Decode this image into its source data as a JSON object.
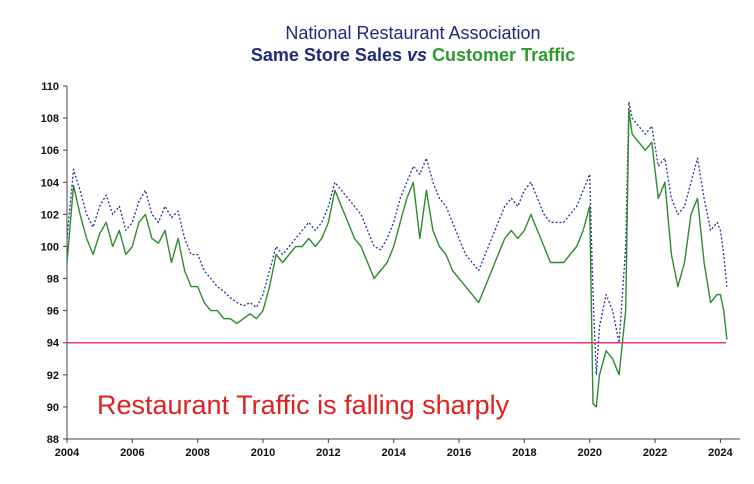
{
  "chart_data": {
    "type": "line",
    "title": "National Restaurant Association",
    "subtitle": {
      "part1": "Same Store Sales",
      "part2": "vs",
      "part3": "Customer Traffic"
    },
    "xlabel": "",
    "ylabel": "",
    "xlim": [
      2004,
      2024.6
    ],
    "ylim": [
      88,
      110
    ],
    "x_ticks": [
      "2004",
      "2006",
      "2008",
      "2010",
      "2012",
      "2014",
      "2016",
      "2018",
      "2020",
      "2022",
      "2024"
    ],
    "y_ticks": [
      "88",
      "90",
      "92",
      "94",
      "96",
      "98",
      "100",
      "102",
      "104",
      "106",
      "108",
      "110"
    ],
    "colors": {
      "sales": "#2b2f9e",
      "traffic": "#2e8b2e",
      "reference": "#e8386e",
      "annotation": "#e02020",
      "title": "#1f2a7a",
      "subtitle_sales": "#1f2a7a",
      "subtitle_traffic": "#2e9a2e"
    },
    "reference_line": {
      "y": 94
    },
    "annotation": {
      "text": "Restaurant Traffic is falling sharply"
    },
    "series": [
      {
        "key": "sales",
        "style": "dotted",
        "x": [
          2004.0,
          2004.2,
          2004.4,
          2004.6,
          2004.8,
          2005.0,
          2005.2,
          2005.4,
          2005.6,
          2005.8,
          2006.0,
          2006.2,
          2006.4,
          2006.6,
          2006.8,
          2007.0,
          2007.2,
          2007.4,
          2007.6,
          2007.8,
          2008.0,
          2008.2,
          2008.4,
          2008.6,
          2008.8,
          2009.0,
          2009.2,
          2009.4,
          2009.6,
          2009.8,
          2010.0,
          2010.2,
          2010.4,
          2010.6,
          2010.8,
          2011.0,
          2011.2,
          2011.4,
          2011.6,
          2011.8,
          2012.0,
          2012.2,
          2012.4,
          2012.6,
          2012.8,
          2013.0,
          2013.2,
          2013.4,
          2013.6,
          2013.8,
          2014.0,
          2014.2,
          2014.4,
          2014.6,
          2014.8,
          2015.0,
          2015.2,
          2015.4,
          2015.6,
          2015.8,
          2016.0,
          2016.2,
          2016.4,
          2016.6,
          2016.8,
          2017.0,
          2017.2,
          2017.4,
          2017.6,
          2017.8,
          2018.0,
          2018.2,
          2018.4,
          2018.6,
          2018.8,
          2019.0,
          2019.2,
          2019.4,
          2019.6,
          2019.8,
          2020.0,
          2020.1,
          2020.2,
          2020.3,
          2020.5,
          2020.7,
          2020.9,
          2021.1,
          2021.2,
          2021.3,
          2021.5,
          2021.7,
          2021.9,
          2022.1,
          2022.3,
          2022.5,
          2022.7,
          2022.9,
          2023.1,
          2023.3,
          2023.5,
          2023.7,
          2023.9,
          2024.0,
          2024.1,
          2024.2
        ],
        "values": [
          100.5,
          104.8,
          103.5,
          102.0,
          101.2,
          102.5,
          103.2,
          102.0,
          102.5,
          101.0,
          101.5,
          102.8,
          103.5,
          102.0,
          101.5,
          102.5,
          101.8,
          102.2,
          100.5,
          99.5,
          99.5,
          98.5,
          98.0,
          97.5,
          97.2,
          96.8,
          96.5,
          96.3,
          96.5,
          96.2,
          97.0,
          98.5,
          100.0,
          99.5,
          100.0,
          100.5,
          101.0,
          101.5,
          101.0,
          101.5,
          102.5,
          104.0,
          103.5,
          103.0,
          102.5,
          102.0,
          101.0,
          100.0,
          99.8,
          100.5,
          101.5,
          103.0,
          104.0,
          105.0,
          104.5,
          105.5,
          104.0,
          103.0,
          102.5,
          101.5,
          100.5,
          99.5,
          99.0,
          98.5,
          99.5,
          100.5,
          101.5,
          102.5,
          103.0,
          102.5,
          103.5,
          104.0,
          103.0,
          102.0,
          101.5,
          101.5,
          101.5,
          102.0,
          102.5,
          103.5,
          104.5,
          97.0,
          92.0,
          95.0,
          97.0,
          96.0,
          94.0,
          100.0,
          109.0,
          108.0,
          107.5,
          107.0,
          107.5,
          105.0,
          105.5,
          103.0,
          102.0,
          102.5,
          104.0,
          105.5,
          103.0,
          101.0,
          101.5,
          101.0,
          99.5,
          97.5
        ]
      },
      {
        "key": "traffic",
        "style": "solid",
        "x": [
          2004.0,
          2004.2,
          2004.4,
          2004.6,
          2004.8,
          2005.0,
          2005.2,
          2005.4,
          2005.6,
          2005.8,
          2006.0,
          2006.2,
          2006.4,
          2006.6,
          2006.8,
          2007.0,
          2007.2,
          2007.4,
          2007.6,
          2007.8,
          2008.0,
          2008.2,
          2008.4,
          2008.6,
          2008.8,
          2009.0,
          2009.2,
          2009.4,
          2009.6,
          2009.8,
          2010.0,
          2010.2,
          2010.4,
          2010.6,
          2010.8,
          2011.0,
          2011.2,
          2011.4,
          2011.6,
          2011.8,
          2012.0,
          2012.2,
          2012.4,
          2012.6,
          2012.8,
          2013.0,
          2013.2,
          2013.4,
          2013.6,
          2013.8,
          2014.0,
          2014.2,
          2014.4,
          2014.6,
          2014.8,
          2015.0,
          2015.2,
          2015.4,
          2015.6,
          2015.8,
          2016.0,
          2016.2,
          2016.4,
          2016.6,
          2016.8,
          2017.0,
          2017.2,
          2017.4,
          2017.6,
          2017.8,
          2018.0,
          2018.2,
          2018.4,
          2018.6,
          2018.8,
          2019.0,
          2019.2,
          2019.4,
          2019.6,
          2019.8,
          2020.0,
          2020.1,
          2020.2,
          2020.3,
          2020.5,
          2020.7,
          2020.9,
          2021.1,
          2021.2,
          2021.3,
          2021.5,
          2021.7,
          2021.9,
          2022.1,
          2022.3,
          2022.5,
          2022.7,
          2022.9,
          2023.1,
          2023.3,
          2023.5,
          2023.7,
          2023.9,
          2024.0,
          2024.1,
          2024.2
        ],
        "values": [
          99.0,
          103.8,
          102.0,
          100.5,
          99.5,
          100.8,
          101.5,
          100.0,
          101.0,
          99.5,
          100.0,
          101.5,
          102.0,
          100.5,
          100.2,
          101.0,
          99.0,
          100.5,
          98.5,
          97.5,
          97.5,
          96.5,
          96.0,
          96.0,
          95.5,
          95.5,
          95.2,
          95.5,
          95.8,
          95.5,
          96.0,
          97.5,
          99.5,
          99.0,
          99.5,
          100.0,
          100.0,
          100.5,
          100.0,
          100.5,
          101.5,
          103.5,
          102.5,
          101.5,
          100.5,
          100.0,
          99.0,
          98.0,
          98.5,
          99.0,
          100.0,
          101.5,
          103.0,
          104.0,
          100.5,
          103.5,
          101.0,
          100.0,
          99.5,
          98.5,
          98.0,
          97.5,
          97.0,
          96.5,
          97.5,
          98.5,
          99.5,
          100.5,
          101.0,
          100.5,
          101.0,
          102.0,
          101.0,
          100.0,
          99.0,
          99.0,
          99.0,
          99.5,
          100.0,
          101.0,
          102.5,
          90.2,
          90.0,
          92.0,
          93.5,
          93.0,
          92.0,
          96.0,
          108.5,
          107.0,
          106.5,
          106.0,
          106.5,
          103.0,
          104.0,
          99.5,
          97.5,
          99.0,
          102.0,
          103.0,
          99.0,
          96.5,
          97.0,
          97.0,
          96.0,
          94.2
        ]
      }
    ]
  }
}
